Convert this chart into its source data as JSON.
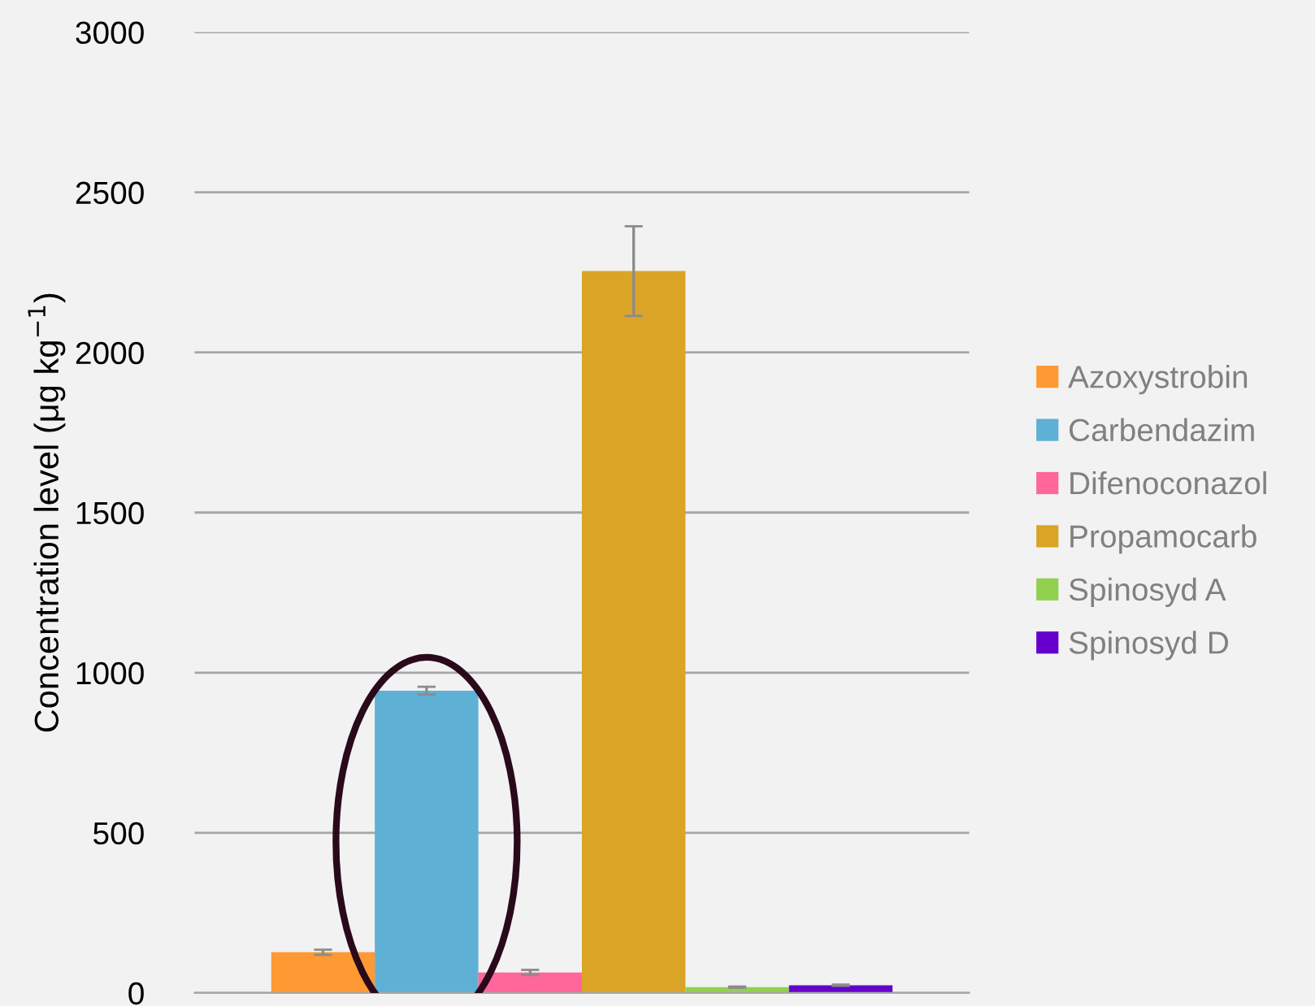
{
  "chart_data": {
    "type": "bar",
    "ylabel": "Concentration level (μg kg$^{−1}$)",
    "categories": [
      null
    ],
    "series": [
      {
        "name": "Azoxystrobin",
        "color": "#ff9933",
        "values": [
          127
        ],
        "errors": [
          8
        ]
      },
      {
        "name": "Carbendazim",
        "color": "#5fb0d5",
        "values": [
          944
        ],
        "errors": [
          12
        ]
      },
      {
        "name": "Difenoconazol",
        "color": "#ff6699",
        "values": [
          64
        ],
        "errors": [
          8
        ]
      },
      {
        "name": "Propamocarb",
        "color": "#daa427",
        "values": [
          2254
        ],
        "errors": [
          140
        ]
      },
      {
        "name": "Spinosyd A",
        "color": "#92d050",
        "values": [
          18
        ],
        "errors": [
          2
        ]
      },
      {
        "name": "Spinosyd D",
        "color": "#6600cc",
        "values": [
          24
        ],
        "errors": [
          2
        ]
      }
    ],
    "ylim": [
      0,
      3000
    ],
    "yticks": [
      0,
      500,
      1000,
      1500,
      2000,
      2500,
      3000
    ],
    "grid": "y",
    "legend": "right"
  }
}
